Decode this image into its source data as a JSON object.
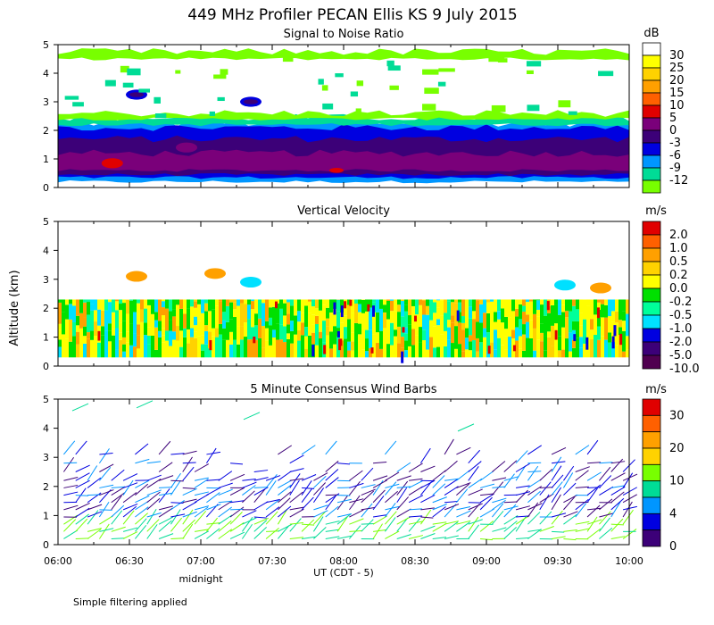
{
  "chart_data": {
    "type": "heatmap",
    "title": "449 MHz Profiler PECAN Ellis KS  9 July 2015",
    "ylabel": "Altitude (km)",
    "xlabel": "UT  (CDT - 5)",
    "x_annotation": "midnight",
    "footnote": "Simple filtering applied",
    "xlim_hours": [
      6,
      10
    ],
    "x_ticks": [
      {
        "t": 6.0,
        "label": "06:00"
      },
      {
        "t": 6.5,
        "label": "06:30"
      },
      {
        "t": 7.0,
        "label": "07:00"
      },
      {
        "t": 7.5,
        "label": "07:30"
      },
      {
        "t": 8.0,
        "label": "08:00"
      },
      {
        "t": 8.5,
        "label": "08:30"
      },
      {
        "t": 9.0,
        "label": "09:00"
      },
      {
        "t": 9.5,
        "label": "09:30"
      },
      {
        "t": 10.0,
        "label": "10:00"
      }
    ],
    "ylim_km": [
      0,
      5
    ],
    "y_ticks": [
      0,
      1,
      2,
      3,
      4,
      5
    ],
    "panels": [
      {
        "id": "snr",
        "title": "Signal to Noise Ratio",
        "unit": "dB",
        "colorbar": [
          {
            "color": "#ffffff",
            "label": "30"
          },
          {
            "color": "#ffff00",
            "label": "25"
          },
          {
            "color": "#ffd200",
            "label": "20"
          },
          {
            "color": "#ffa000",
            "label": "15"
          },
          {
            "color": "#ff6000",
            "label": "10"
          },
          {
            "color": "#e00000",
            "label": "5"
          },
          {
            "color": "#7a007a",
            "label": "0"
          },
          {
            "color": "#3c0078",
            "label": "-3"
          },
          {
            "color": "#0000e0",
            "label": "-6"
          },
          {
            "color": "#0096ff",
            "label": "-9"
          },
          {
            "color": "#00dc96",
            "label": "-12"
          },
          {
            "color": "#78ff00",
            "label": ""
          }
        ],
        "layers": [
          {
            "z0": 0.2,
            "z1": 2.25,
            "color": "#0096ff"
          },
          {
            "z0": 0.35,
            "z1": 2.1,
            "color": "#0000e0"
          },
          {
            "z0": 0.45,
            "z1": 1.7,
            "color": "#3c0078"
          },
          {
            "z0": 0.6,
            "z1": 1.2,
            "color": "#7a007a"
          },
          {
            "z0": 2.2,
            "z1": 2.45,
            "color": "#00dc96"
          },
          {
            "z0": 2.4,
            "z1": 2.6,
            "color": "#78ff00"
          },
          {
            "z0": 4.5,
            "z1": 4.75,
            "color": "#78ff00"
          }
        ]
      },
      {
        "id": "velocity",
        "title": "Vertical Velocity",
        "unit": "m/s",
        "colorbar": [
          {
            "color": "#e00000",
            "label": "2.0"
          },
          {
            "color": "#ff6000",
            "label": "1.0"
          },
          {
            "color": "#ffa000",
            "label": "0.5"
          },
          {
            "color": "#ffd200",
            "label": "0.2"
          },
          {
            "color": "#ffff00",
            "label": "0.0"
          },
          {
            "color": "#00e000",
            "label": "-0.2"
          },
          {
            "color": "#00ff9a",
            "label": "-0.5"
          },
          {
            "color": "#00e0ff",
            "label": "-1.0"
          },
          {
            "color": "#0000e0",
            "label": "-2.0"
          },
          {
            "color": "#3c0078",
            "label": "-5.0"
          },
          {
            "color": "#500050",
            "label": "-10.0"
          }
        ],
        "data_top_km": 2.3
      },
      {
        "id": "wind",
        "title": "5 Minute Consensus Wind Barbs",
        "unit": "m/s",
        "colorbar": [
          {
            "color": "#e00000",
            "label": "30"
          },
          {
            "color": "#ff6000",
            "label": ""
          },
          {
            "color": "#ffa000",
            "label": "20"
          },
          {
            "color": "#ffd200",
            "label": ""
          },
          {
            "color": "#78ff00",
            "label": "10"
          },
          {
            "color": "#00dc96",
            "label": ""
          },
          {
            "color": "#0096ff",
            "label": "4"
          },
          {
            "color": "#0000e0",
            "label": ""
          },
          {
            "color": "#3c0078",
            "label": "0"
          }
        ],
        "heights_km": [
          0.2,
          0.45,
          0.7,
          0.95,
          1.2,
          1.45,
          1.7,
          1.95,
          2.2,
          2.5,
          2.8,
          3.1
        ],
        "step_minutes": 5
      }
    ]
  }
}
